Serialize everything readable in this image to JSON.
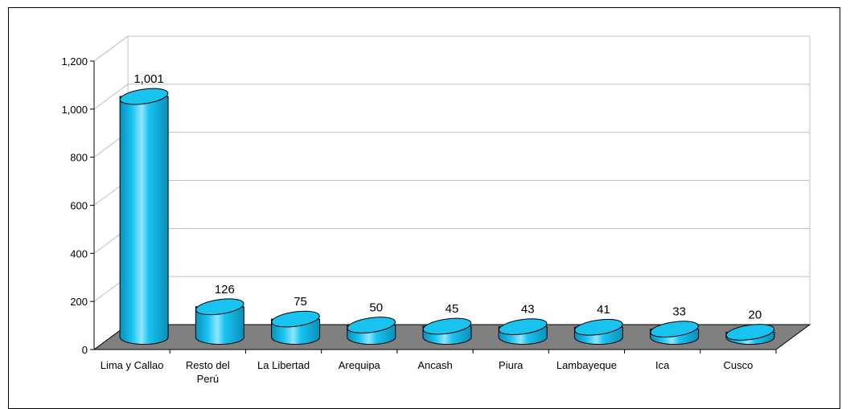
{
  "chart_data": {
    "type": "bar",
    "style": "3d-cylinder",
    "categories": [
      "Lima y Callao",
      "Resto del Perú",
      "La Libertad",
      "Arequipa",
      "Ancash",
      "Piura",
      "Lambayeque",
      "Ica",
      "Cusco"
    ],
    "values": [
      1001,
      126,
      75,
      50,
      45,
      43,
      41,
      33,
      20
    ],
    "data_labels": [
      "1,001",
      "126",
      "75",
      "50",
      "45",
      "43",
      "41",
      "33",
      "20"
    ],
    "y_ticks": [
      "0",
      "200",
      "400",
      "600",
      "800",
      "1,000",
      "1,200"
    ],
    "ylim": [
      0,
      1200
    ],
    "grid": true,
    "colors": {
      "bar": "#19c3f0",
      "bar_dark": "#0a8fb8",
      "bar_light": "#8fe6ff",
      "floor": "#808080",
      "grid": "#c0c0c0"
    }
  }
}
